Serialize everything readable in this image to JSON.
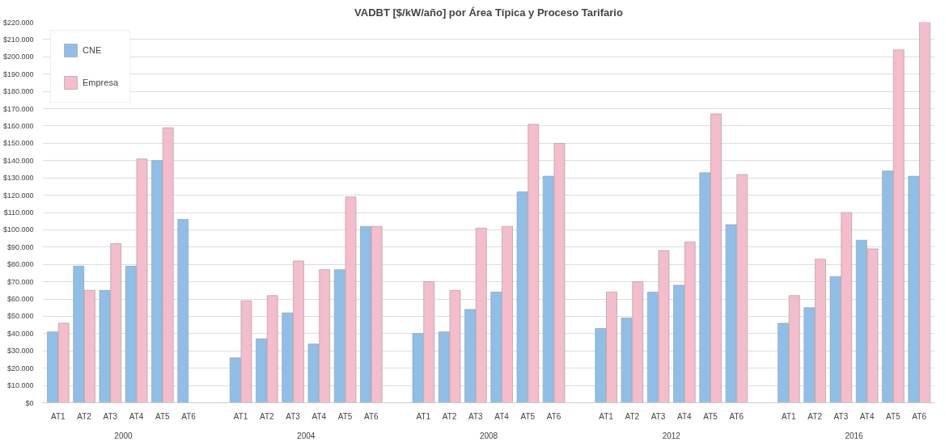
{
  "chart_data": {
    "type": "bar",
    "title": "VADBT [$/kW/año] por Área Típica y Proceso Tarifario",
    "categories": [
      "AT1",
      "AT2",
      "AT3",
      "AT4",
      "AT5",
      "AT6",
      "AT1",
      "AT2",
      "AT3",
      "AT4",
      "AT5",
      "AT6",
      "AT1",
      "AT2",
      "AT3",
      "AT4",
      "AT5",
      "AT6",
      "AT1",
      "AT2",
      "AT3",
      "AT4",
      "AT5",
      "AT6",
      "AT1",
      "AT2",
      "AT3",
      "AT4",
      "AT5",
      "AT6"
    ],
    "series": [
      {
        "name": "CNE",
        "color": "#8fbfe8",
        "values": [
          41000,
          79000,
          65000,
          79000,
          140000,
          106000,
          26000,
          37000,
          52000,
          34000,
          77000,
          102000,
          40000,
          41000,
          54000,
          64000,
          122000,
          131000,
          43000,
          49000,
          64000,
          68000,
          133000,
          103000,
          46000,
          55000,
          73000,
          94000,
          134000,
          131000
        ]
      },
      {
        "name": "Empresa",
        "color": "#f5bccb",
        "values": [
          46000,
          65000,
          92000,
          141000,
          159000,
          null,
          59000,
          62000,
          82000,
          77000,
          119000,
          102000,
          70000,
          65000,
          101000,
          102000,
          161000,
          150000,
          64000,
          70000,
          88000,
          93000,
          167000,
          132000,
          62000,
          83000,
          110000,
          89000,
          204000,
          220000
        ]
      }
    ],
    "annotations": [
      "2000",
      "2004",
      "2008",
      "2012",
      "2016"
    ],
    "ylim": [
      0,
      220000
    ],
    "yticks": [
      {
        "value": 0,
        "label": "$0"
      },
      {
        "value": 10000,
        "label": "$10.000"
      },
      {
        "value": 20000,
        "label": "$20.000"
      },
      {
        "value": 30000,
        "label": "$30.000"
      },
      {
        "value": 40000,
        "label": "$40.000"
      },
      {
        "value": 50000,
        "label": "$50.000"
      },
      {
        "value": 60000,
        "label": "$60.000"
      },
      {
        "value": 70000,
        "label": "$70.000"
      },
      {
        "value": 80000,
        "label": "$80.000"
      },
      {
        "value": 90000,
        "label": "$90.000"
      },
      {
        "value": 100000,
        "label": "$100.000"
      },
      {
        "value": 110000,
        "label": "$110.000"
      },
      {
        "value": 120000,
        "label": "$120.000"
      },
      {
        "value": 130000,
        "label": "$130.000"
      },
      {
        "value": 140000,
        "label": "$140.000"
      },
      {
        "value": 150000,
        "label": "$150.000"
      },
      {
        "value": 160000,
        "label": "$160.000"
      },
      {
        "value": 170000,
        "label": "$170.000"
      },
      {
        "value": 180000,
        "label": "$180.000"
      },
      {
        "value": 190000,
        "label": "$190.000"
      },
      {
        "value": 200000,
        "label": "$200.000"
      },
      {
        "value": 210000,
        "label": "$210.000"
      },
      {
        "value": 220000,
        "label": "$220.000"
      }
    ],
    "grid": "y",
    "legend": "top left"
  }
}
